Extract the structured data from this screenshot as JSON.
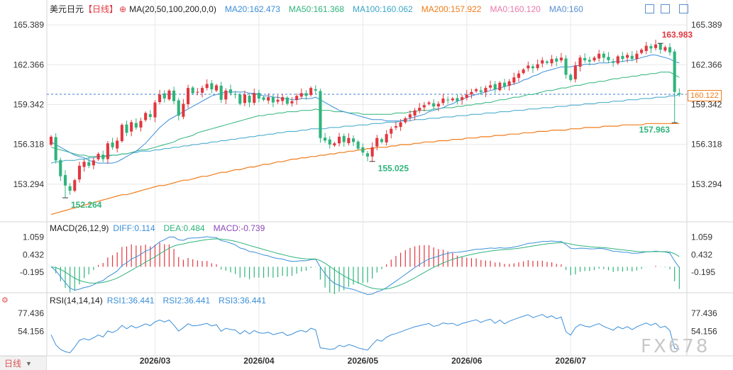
{
  "header": {
    "symbol": "美元日元",
    "period": "【日线】",
    "ma_label": "MA(20,50,100,200,0,0)",
    "ma_values": [
      {
        "text": "MA20:162.473",
        "color": "#3b8fd9"
      },
      {
        "text": "MA50:161.368",
        "color": "#2fb47c"
      },
      {
        "text": "MA100:160.062",
        "color": "#3aa6c9"
      },
      {
        "text": "MA200:157.922",
        "color": "#f07c1a"
      },
      {
        "text": "MA0:160.120",
        "color": "#e879a8"
      },
      {
        "text": "MA0:160",
        "color": "#5a8fd0"
      }
    ]
  },
  "macd_header": {
    "label": "MACD(26,12,9)",
    "values": [
      {
        "text": "DIFF:0.114",
        "color": "#3b8fd9"
      },
      {
        "text": "DEA:0.484",
        "color": "#2fb47c"
      },
      {
        "text": "MACD:-0.739",
        "color": "#8b4ab9"
      }
    ]
  },
  "rsi_header": {
    "label": "RSI(14,14,14)",
    "values": [
      {
        "text": "RSI1:36.441",
        "color": "#3b8fd9"
      },
      {
        "text": "RSI2:36.441",
        "color": "#3b8fd9"
      },
      {
        "text": "RSI3:36.441",
        "color": "#3b8fd9"
      }
    ]
  },
  "watermark": "FX678",
  "period_tab": "日线",
  "colors": {
    "up": "#e2373f",
    "down": "#2fb47c",
    "ma20": "#3b8fd9",
    "ma50": "#2fb47c",
    "ma100": "#3aa6c9",
    "ma200": "#f07c1a",
    "grid": "#e8e8e8",
    "axis_text": "#333333"
  },
  "chart_data": [
    {
      "type": "candlestick",
      "name": "price",
      "x_ticks": [
        "2026/03",
        "2026/04",
        "2026/05",
        "2026/06",
        "2026/07"
      ],
      "y_ticks": [
        "165.389",
        "162.366",
        "159.342",
        "156.318",
        "153.294"
      ],
      "y_tick_values": [
        165.389,
        162.366,
        159.342,
        156.318,
        153.294
      ],
      "ylim": [
        150.6,
        166.2
      ],
      "annotations": [
        {
          "text": "163.983",
          "value": 163.983,
          "bar": 129
        },
        {
          "text": "157.963",
          "value": 157.963,
          "bar": 132
        },
        {
          "text": "155.025",
          "value": 155.025,
          "bar": 68
        },
        {
          "text": "152.264",
          "value": 152.264,
          "bar": 3
        }
      ],
      "last_price": {
        "text": "160.122",
        "value": 160.122
      },
      "closes": [
        156.9,
        155.1,
        153.9,
        153.2,
        152.8,
        153.6,
        154.7,
        155.0,
        154.7,
        155.1,
        155.6,
        155.2,
        156.4,
        156.1,
        156.6,
        157.8,
        157.2,
        158.0,
        157.6,
        158.1,
        158.7,
        158.4,
        159.5,
        160.1,
        159.8,
        160.4,
        159.6,
        158.5,
        159.4,
        160.6,
        160.2,
        160.3,
        160.6,
        160.9,
        160.5,
        160.8,
        159.7,
        160.4,
        160.2,
        160.1,
        159.4,
        160.1,
        159.5,
        160.2,
        159.8,
        159.7,
        159.9,
        159.5,
        159.7,
        159.9,
        159.4,
        159.6,
        160.0,
        160.2,
        160.0,
        160.6,
        160.4,
        156.8,
        156.6,
        156.3,
        156.4,
        156.9,
        156.5,
        156.8,
        156.5,
        156.0,
        155.7,
        155.4,
        156.1,
        156.8,
        156.5,
        157.1,
        157.5,
        157.7,
        158.0,
        158.3,
        158.6,
        158.9,
        159.1,
        159.3,
        159.5,
        159.2,
        159.4,
        159.8,
        159.7,
        159.8,
        159.6,
        159.9,
        160.1,
        160.3,
        160.5,
        160.3,
        160.6,
        160.8,
        160.5,
        161.0,
        160.7,
        161.1,
        161.4,
        161.7,
        162.0,
        162.3,
        162.1,
        162.4,
        162.7,
        162.5,
        162.8,
        162.6,
        162.9,
        161.6,
        161.2,
        162.3,
        162.9,
        162.7,
        162.6,
        162.9,
        163.2,
        162.9,
        162.7,
        162.5,
        163.0,
        162.8,
        163.1,
        162.8,
        163.2,
        163.5,
        163.8,
        163.6,
        163.9,
        163.5,
        163.7,
        163.3,
        160.3,
        160.12
      ],
      "ma20": [
        156.5,
        156.3,
        156.1,
        155.9,
        155.7,
        155.5,
        155.4,
        155.3,
        155.1,
        155.0,
        154.9,
        154.9,
        154.9,
        154.9,
        155.0,
        155.2,
        155.4,
        155.6,
        155.8,
        156.1,
        156.4,
        156.8,
        157.2,
        157.6,
        157.9,
        158.2,
        158.4,
        158.6,
        158.8,
        159.0,
        159.2,
        159.4,
        159.6,
        159.8,
        160.0,
        160.1,
        160.2,
        160.3,
        160.3,
        160.3,
        160.3,
        160.3,
        160.2,
        160.2,
        160.1,
        160.0,
        160.0,
        159.9,
        159.9,
        159.8,
        159.8,
        159.7,
        159.7,
        159.8,
        159.8,
        159.8,
        159.9,
        159.7,
        159.5,
        159.3,
        159.1,
        158.9,
        158.8,
        158.7,
        158.6,
        158.5,
        158.4,
        158.3,
        158.2,
        158.2,
        158.2,
        158.1,
        158.1,
        158.1,
        158.1,
        158.2,
        158.3,
        158.4,
        158.5,
        158.6,
        158.8,
        158.9,
        159.0,
        159.1,
        159.3,
        159.4,
        159.6,
        159.7,
        159.9,
        160.0,
        160.1,
        160.2,
        160.3,
        160.4,
        160.5,
        160.6,
        160.7,
        160.8,
        160.9,
        161.0,
        161.2,
        161.3,
        161.5,
        161.6,
        161.8,
        161.9,
        162.0,
        162.1,
        162.2,
        162.2,
        162.2,
        162.3,
        162.3,
        162.4,
        162.4,
        162.4,
        162.5,
        162.5,
        162.5,
        162.6,
        162.6,
        162.6,
        162.7,
        162.7,
        162.8,
        162.9,
        163.0,
        163.1,
        163.1,
        163.0,
        162.9,
        162.8,
        162.6,
        162.5
      ],
      "ma50": [
        156.1,
        156.0,
        155.9,
        155.8,
        155.7,
        155.6,
        155.5,
        155.5,
        155.4,
        155.4,
        155.4,
        155.4,
        155.4,
        155.5,
        155.5,
        155.6,
        155.6,
        155.7,
        155.8,
        155.9,
        155.9,
        156.0,
        156.1,
        156.2,
        156.3,
        156.4,
        156.5,
        156.7,
        156.8,
        156.9,
        157.0,
        157.2,
        157.3,
        157.4,
        157.5,
        157.6,
        157.7,
        157.8,
        157.9,
        158.0,
        158.1,
        158.2,
        158.3,
        158.4,
        158.5,
        158.5,
        158.6,
        158.6,
        158.7,
        158.7,
        158.8,
        158.8,
        158.8,
        158.9,
        158.9,
        158.9,
        159.0,
        158.9,
        158.9,
        158.9,
        158.8,
        158.8,
        158.8,
        158.7,
        158.7,
        158.7,
        158.6,
        158.6,
        158.6,
        158.6,
        158.6,
        158.6,
        158.6,
        158.7,
        158.7,
        158.7,
        158.8,
        158.8,
        158.9,
        158.9,
        158.9,
        159.0,
        159.0,
        159.1,
        159.1,
        159.1,
        159.2,
        159.2,
        159.3,
        159.3,
        159.4,
        159.4,
        159.5,
        159.5,
        159.6,
        159.7,
        159.7,
        159.8,
        159.9,
        159.9,
        160.0,
        160.1,
        160.1,
        160.2,
        160.3,
        160.4,
        160.4,
        160.5,
        160.6,
        160.6,
        160.7,
        160.8,
        160.8,
        160.9,
        161.0,
        161.0,
        161.1,
        161.1,
        161.2,
        161.3,
        161.3,
        161.4,
        161.4,
        161.5,
        161.5,
        161.6,
        161.6,
        161.7,
        161.7,
        161.8,
        161.8,
        161.8,
        161.6,
        161.4
      ],
      "ma100": [
        154.9,
        155.0,
        155.0,
        155.1,
        155.1,
        155.1,
        155.2,
        155.2,
        155.3,
        155.3,
        155.4,
        155.4,
        155.5,
        155.5,
        155.5,
        155.6,
        155.6,
        155.7,
        155.7,
        155.8,
        155.8,
        155.8,
        155.9,
        155.9,
        156.0,
        156.0,
        156.1,
        156.1,
        156.2,
        156.2,
        156.3,
        156.3,
        156.4,
        156.4,
        156.5,
        156.5,
        156.6,
        156.6,
        156.7,
        156.7,
        156.8,
        156.8,
        156.9,
        156.9,
        157.0,
        157.0,
        157.1,
        157.1,
        157.2,
        157.2,
        157.3,
        157.3,
        157.3,
        157.4,
        157.4,
        157.5,
        157.5,
        157.5,
        157.5,
        157.6,
        157.6,
        157.6,
        157.7,
        157.7,
        157.7,
        157.8,
        157.8,
        157.8,
        157.9,
        157.9,
        157.9,
        158.0,
        158.0,
        158.0,
        158.1,
        158.1,
        158.1,
        158.2,
        158.2,
        158.2,
        158.3,
        158.3,
        158.3,
        158.4,
        158.4,
        158.4,
        158.5,
        158.5,
        158.5,
        158.6,
        158.6,
        158.6,
        158.7,
        158.7,
        158.7,
        158.8,
        158.8,
        158.8,
        158.9,
        158.9,
        158.9,
        159.0,
        159.0,
        159.0,
        159.1,
        159.1,
        159.1,
        159.2,
        159.2,
        159.2,
        159.3,
        159.3,
        159.3,
        159.4,
        159.4,
        159.4,
        159.5,
        159.5,
        159.5,
        159.6,
        159.6,
        159.6,
        159.7,
        159.7,
        159.7,
        159.8,
        159.8,
        159.8,
        159.9,
        159.9,
        159.9,
        160.0,
        160.0,
        160.1
      ],
      "ma200": [
        151.0,
        151.1,
        151.2,
        151.3,
        151.4,
        151.5,
        151.6,
        151.7,
        151.8,
        151.9,
        152.0,
        152.1,
        152.2,
        152.3,
        152.4,
        152.5,
        152.5,
        152.6,
        152.7,
        152.8,
        152.9,
        153.0,
        153.1,
        153.2,
        153.2,
        153.3,
        153.4,
        153.5,
        153.6,
        153.6,
        153.7,
        153.8,
        153.9,
        153.9,
        154.0,
        154.1,
        154.2,
        154.2,
        154.3,
        154.4,
        154.4,
        154.5,
        154.6,
        154.6,
        154.7,
        154.8,
        154.8,
        154.9,
        155.0,
        155.0,
        155.1,
        155.2,
        155.2,
        155.3,
        155.3,
        155.4,
        155.4,
        155.5,
        155.5,
        155.6,
        155.6,
        155.7,
        155.7,
        155.8,
        155.8,
        155.9,
        155.9,
        156.0,
        156.0,
        156.1,
        156.1,
        156.1,
        156.2,
        156.2,
        156.3,
        156.3,
        156.3,
        156.4,
        156.4,
        156.5,
        156.5,
        156.5,
        156.6,
        156.6,
        156.6,
        156.7,
        156.7,
        156.7,
        156.8,
        156.8,
        156.8,
        156.9,
        156.9,
        156.9,
        157.0,
        157.0,
        157.0,
        157.1,
        157.1,
        157.1,
        157.2,
        157.2,
        157.2,
        157.3,
        157.3,
        157.3,
        157.4,
        157.4,
        157.4,
        157.4,
        157.5,
        157.5,
        157.5,
        157.6,
        157.6,
        157.6,
        157.6,
        157.7,
        157.7,
        157.7,
        157.7,
        157.8,
        157.8,
        157.8,
        157.8,
        157.8,
        157.9,
        157.9,
        157.9,
        157.9,
        157.9,
        157.9,
        157.9,
        157.9
      ]
    },
    {
      "type": "bar+line",
      "name": "MACD(26,12,9)",
      "y_ticks": [
        "1.059",
        "0.432",
        "-0.195"
      ],
      "y_tick_values": [
        1.059,
        0.432,
        -0.195
      ],
      "ylim": [
        -0.9,
        1.3
      ]
    },
    {
      "type": "line",
      "name": "RSI(14,14,14)",
      "y_ticks": [
        "77.436",
        "54.156"
      ],
      "y_tick_values": [
        77.436,
        54.156
      ],
      "ylim": [
        25,
        90
      ]
    }
  ]
}
